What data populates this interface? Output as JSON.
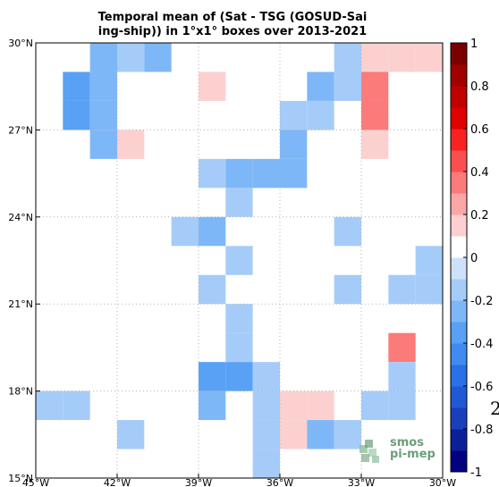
{
  "header": {
    "title_line1": "Temporal mean of (Sat - TSG (GOSUD-Sai",
    "title_line2": "ing-ship)) in 1°x1° boxes over 2013-2021"
  },
  "logo": {
    "line1": "smos",
    "line2": "pi-mep"
  },
  "edge_glyph": "2",
  "chart_data": {
    "type": "heatmap",
    "title": "Temporal mean of (Sat - TSG (GOSUD-Sailing-ship)) in 1°x1° boxes over 2013-2021",
    "x_ticks": [
      {
        "value": -45,
        "label": "45°W"
      },
      {
        "value": -42,
        "label": "42°W"
      },
      {
        "value": -39,
        "label": "39°W"
      },
      {
        "value": -36,
        "label": "36°W"
      },
      {
        "value": -33,
        "label": "33°W"
      },
      {
        "value": -30,
        "label": "30°W"
      }
    ],
    "y_ticks": [
      {
        "value": 15,
        "label": "15°N"
      },
      {
        "value": 18,
        "label": "18°N"
      },
      {
        "value": 21,
        "label": "21°N"
      },
      {
        "value": 24,
        "label": "24°N"
      },
      {
        "value": 27,
        "label": "27°N"
      },
      {
        "value": 30,
        "label": "30°N"
      }
    ],
    "xlim": [
      -45,
      -30
    ],
    "ylim": [
      15,
      30
    ],
    "grid": true,
    "colorbar": {
      "range": [
        -1,
        1
      ],
      "tick_labels": [
        {
          "value": 1,
          "label": "1"
        },
        {
          "value": 0.8,
          "label": "0.8"
        },
        {
          "value": 0.6,
          "label": "0.6"
        },
        {
          "value": 0.4,
          "label": "0.4"
        },
        {
          "value": 0.2,
          "label": "0.2"
        },
        {
          "value": 0,
          "label": "0"
        },
        {
          "value": -0.2,
          "label": "-0.2"
        },
        {
          "value": -0.4,
          "label": "-0.4"
        },
        {
          "value": -0.6,
          "label": "-0.6"
        },
        {
          "value": -0.8,
          "label": "-0.8"
        },
        {
          "value": -1,
          "label": "-1"
        }
      ],
      "colors": [
        "#000080",
        "#0a209a",
        "#1a3fba",
        "#2158d6",
        "#2a70e8",
        "#3f8bf0",
        "#58a1f5",
        "#7eb7f7",
        "#a5ccf9",
        "#cde1fb",
        "#ffffff",
        "#fdd0d0",
        "#fca6a6",
        "#fb7a7a",
        "#fa4f4f",
        "#f82222",
        "#e00000",
        "#c00000",
        "#a00000",
        "#7a0000"
      ]
    },
    "cells": [
      {
        "lon": -43,
        "lat": 29,
        "value": -0.25
      },
      {
        "lon": -42,
        "lat": 29,
        "value": -0.15
      },
      {
        "lon": -41,
        "lat": 29,
        "value": -0.25
      },
      {
        "lon": -34,
        "lat": 29,
        "value": -0.15
      },
      {
        "lon": -33,
        "lat": 29,
        "value": 0.1
      },
      {
        "lon": -32,
        "lat": 29,
        "value": 0.1
      },
      {
        "lon": -31,
        "lat": 29,
        "value": 0.1
      },
      {
        "lon": -44,
        "lat": 28,
        "value": -0.35
      },
      {
        "lon": -43,
        "lat": 28,
        "value": -0.25
      },
      {
        "lon": -39,
        "lat": 28,
        "value": 0.1
      },
      {
        "lon": -35,
        "lat": 28,
        "value": -0.25
      },
      {
        "lon": -34,
        "lat": 28,
        "value": -0.15
      },
      {
        "lon": -33,
        "lat": 28,
        "value": 0.3
      },
      {
        "lon": -44,
        "lat": 27,
        "value": -0.35
      },
      {
        "lon": -43,
        "lat": 27,
        "value": -0.25
      },
      {
        "lon": -36,
        "lat": 27,
        "value": -0.15
      },
      {
        "lon": -35,
        "lat": 27,
        "value": -0.15
      },
      {
        "lon": -33,
        "lat": 27,
        "value": 0.3
      },
      {
        "lon": -43,
        "lat": 26,
        "value": -0.25
      },
      {
        "lon": -42,
        "lat": 26,
        "value": 0.1
      },
      {
        "lon": -36,
        "lat": 26,
        "value": -0.25
      },
      {
        "lon": -33,
        "lat": 26,
        "value": 0.1
      },
      {
        "lon": -39,
        "lat": 25,
        "value": -0.15
      },
      {
        "lon": -38,
        "lat": 25,
        "value": -0.25
      },
      {
        "lon": -37,
        "lat": 25,
        "value": -0.25
      },
      {
        "lon": -36,
        "lat": 25,
        "value": -0.25
      },
      {
        "lon": -38,
        "lat": 24,
        "value": -0.15
      },
      {
        "lon": -40,
        "lat": 23,
        "value": -0.15
      },
      {
        "lon": -39,
        "lat": 23,
        "value": -0.25
      },
      {
        "lon": -34,
        "lat": 23,
        "value": -0.15
      },
      {
        "lon": -38,
        "lat": 22,
        "value": -0.15
      },
      {
        "lon": -31,
        "lat": 22,
        "value": -0.15
      },
      {
        "lon": -39,
        "lat": 21,
        "value": -0.15
      },
      {
        "lon": -34,
        "lat": 21,
        "value": -0.15
      },
      {
        "lon": -32,
        "lat": 21,
        "value": -0.15
      },
      {
        "lon": -31,
        "lat": 21,
        "value": -0.15
      },
      {
        "lon": -38,
        "lat": 20,
        "value": -0.15
      },
      {
        "lon": -38,
        "lat": 19,
        "value": -0.15
      },
      {
        "lon": -32,
        "lat": 19,
        "value": 0.3
      },
      {
        "lon": -39,
        "lat": 18,
        "value": -0.35
      },
      {
        "lon": -38,
        "lat": 18,
        "value": -0.35
      },
      {
        "lon": -37,
        "lat": 18,
        "value": -0.15
      },
      {
        "lon": -32,
        "lat": 18,
        "value": -0.15
      },
      {
        "lon": -45,
        "lat": 17,
        "value": -0.15
      },
      {
        "lon": -44,
        "lat": 17,
        "value": -0.15
      },
      {
        "lon": -39,
        "lat": 17,
        "value": -0.25
      },
      {
        "lon": -37,
        "lat": 17,
        "value": -0.15
      },
      {
        "lon": -36,
        "lat": 17,
        "value": 0.1
      },
      {
        "lon": -35,
        "lat": 17,
        "value": 0.1
      },
      {
        "lon": -33,
        "lat": 17,
        "value": -0.15
      },
      {
        "lon": -32,
        "lat": 17,
        "value": -0.15
      },
      {
        "lon": -42,
        "lat": 16,
        "value": -0.15
      },
      {
        "lon": -37,
        "lat": 16,
        "value": -0.15
      },
      {
        "lon": -36,
        "lat": 16,
        "value": 0.1
      },
      {
        "lon": -35,
        "lat": 16,
        "value": -0.25
      },
      {
        "lon": -34,
        "lat": 16,
        "value": -0.15
      },
      {
        "lon": -37,
        "lat": 15,
        "value": -0.15
      }
    ]
  }
}
